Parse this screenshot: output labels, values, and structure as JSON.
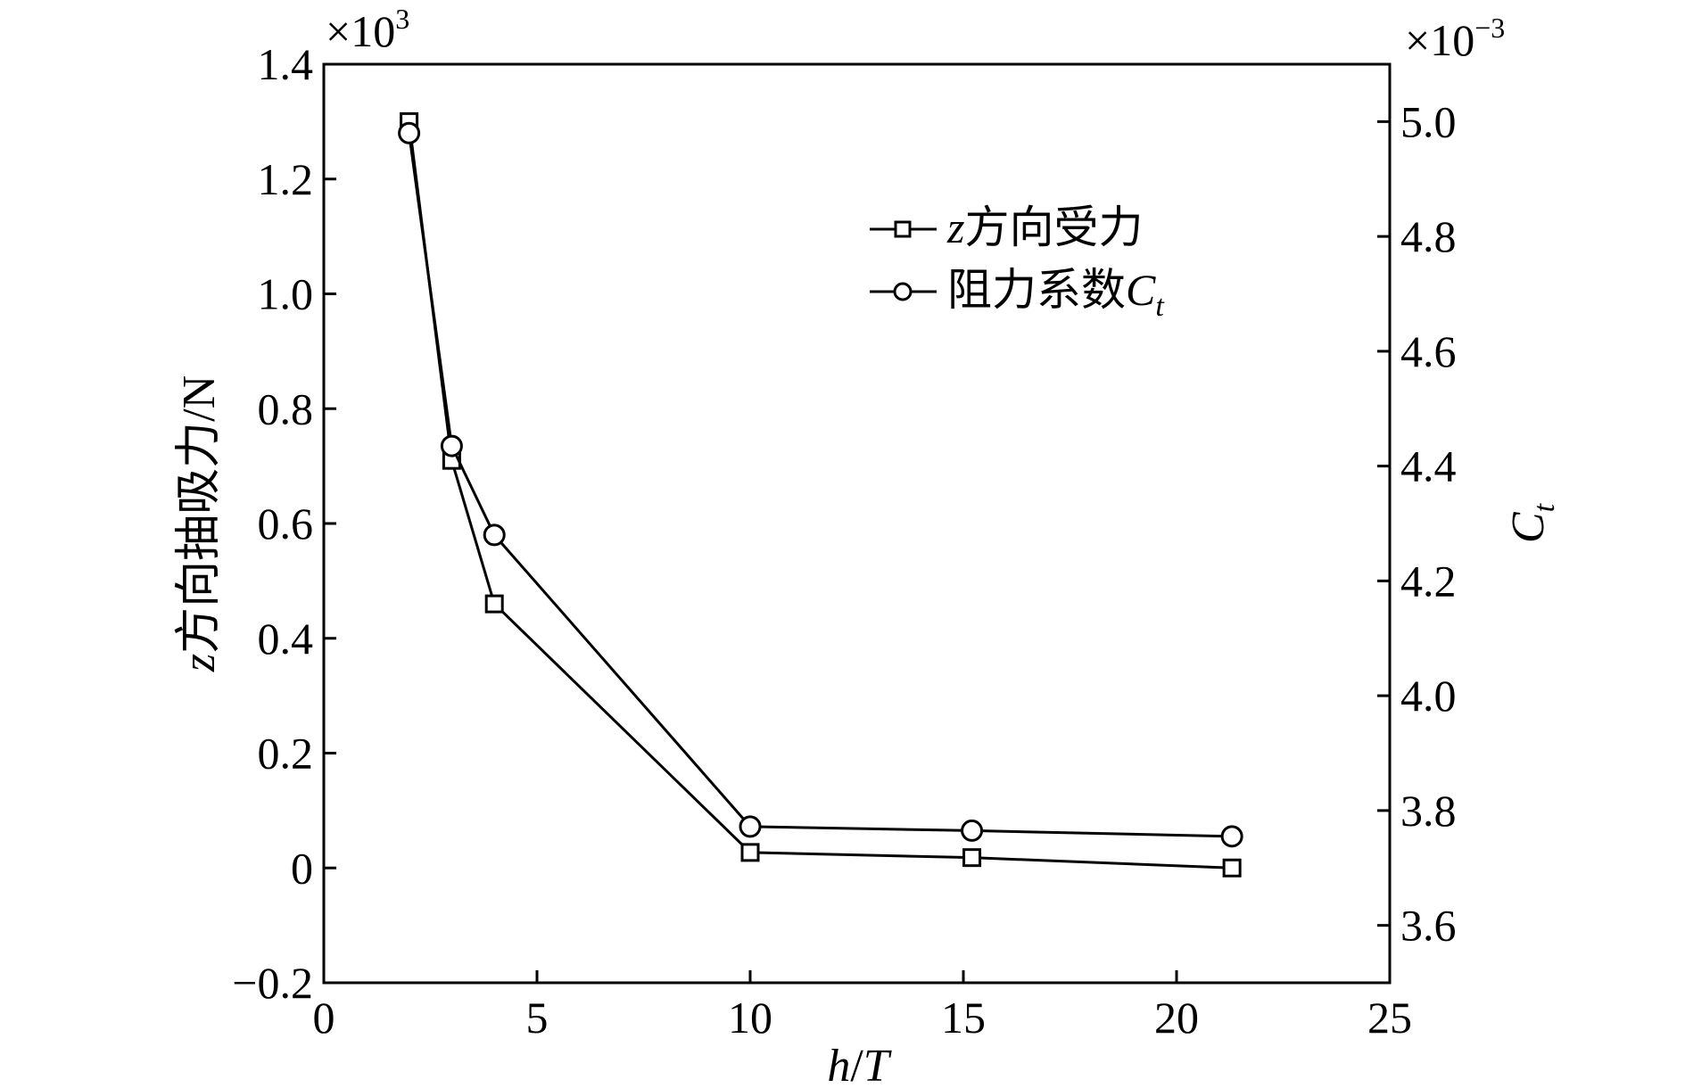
{
  "chart_data": {
    "type": "line",
    "x_title": "h/T",
    "x_title_parts": {
      "var1": "h",
      "slash": "/",
      "var2": "T"
    },
    "xlim": [
      0,
      25
    ],
    "x_ticks": [
      0,
      5,
      10,
      15,
      20,
      25
    ],
    "x_tick_labels": [
      "0",
      "5",
      "10",
      "15",
      "20",
      "25"
    ],
    "left_axis": {
      "title": "z方向抽吸力/N",
      "title_parts": {
        "var": "z",
        "rest": "方向抽吸力/N"
      },
      "multiplier": "×10",
      "multiplier_exp": "3",
      "lim": [
        -0.2,
        1.4
      ],
      "ticks": [
        -0.2,
        0,
        0.2,
        0.4,
        0.6,
        0.8,
        1.0,
        1.2,
        1.4
      ],
      "tick_labels": [
        "−0.2",
        "0",
        "0.2",
        "0.4",
        "0.6",
        "0.8",
        "1.0",
        "1.2",
        "1.4"
      ]
    },
    "right_axis": {
      "title": "Ct",
      "title_parts": {
        "var": "C",
        "sub": "t"
      },
      "multiplier": "×10",
      "multiplier_exp": "−3",
      "lim": [
        3.5,
        5.1
      ],
      "ticks": [
        3.6,
        3.8,
        4.0,
        4.2,
        4.4,
        4.6,
        4.8,
        5.0
      ],
      "tick_labels": [
        "3.6",
        "3.8",
        "4.0",
        "4.2",
        "4.4",
        "4.6",
        "4.8",
        "5.0"
      ]
    },
    "series": [
      {
        "name": "z方向受力",
        "name_parts": {
          "var": "z",
          "rest": "方向受力"
        },
        "marker": "square",
        "axis": "left",
        "x": [
          2,
          3,
          4,
          10,
          15.2,
          21.3
        ],
        "y": [
          1.3,
          0.71,
          0.46,
          0.027,
          0.018,
          0.0
        ]
      },
      {
        "name": "阻力系数Ct",
        "name_parts": {
          "rest": "阻力系数",
          "var": "C",
          "sub": "t"
        },
        "marker": "circle",
        "axis": "right",
        "x": [
          2,
          3,
          4,
          10,
          15.2,
          21.3
        ],
        "y": [
          4.98,
          4.435,
          4.28,
          3.772,
          3.765,
          3.755
        ]
      }
    ],
    "legend_position": "top-right",
    "grid": false,
    "line_color": "#000000"
  }
}
